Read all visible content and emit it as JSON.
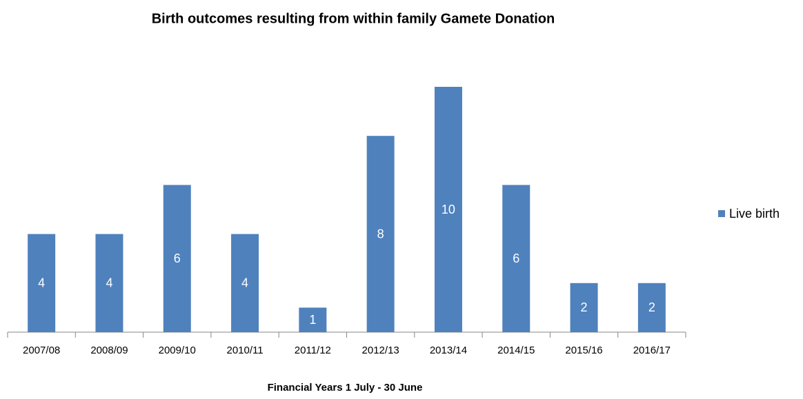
{
  "chart_data": {
    "type": "bar",
    "title": "Birth outcomes resulting from within family  Gamete Donation",
    "x_label": "Financial Years 1 July - 30 June",
    "categories": [
      "2007/08",
      "2008/09",
      "2009/10",
      "2010/11",
      "2011/12",
      "2012/13",
      "2013/14",
      "2014/15",
      "2015/16",
      "2016/17"
    ],
    "series": [
      {
        "name": "Live birth",
        "color": "#4f81bd",
        "values": [
          4,
          4,
          6,
          4,
          1,
          8,
          10,
          6,
          2,
          2
        ]
      }
    ],
    "ylim": [
      0,
      10
    ],
    "legend": "right"
  }
}
